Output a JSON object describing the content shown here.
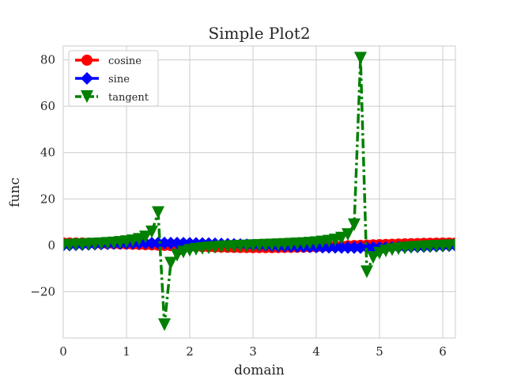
{
  "chart_data": {
    "type": "line",
    "title": "Simple Plot2",
    "xlabel": "domain",
    "ylabel": "func",
    "xlim": [
      0,
      6.2
    ],
    "ylim": [
      -40,
      86
    ],
    "xticks": [
      0,
      1,
      2,
      3,
      4,
      5,
      6
    ],
    "xtick_labels": [
      "0",
      "1",
      "2",
      "3",
      "4",
      "5",
      "6"
    ],
    "yticks": [
      -20,
      0,
      20,
      40,
      60,
      80
    ],
    "ytick_labels": [
      "−20",
      "0",
      "20",
      "40",
      "60",
      "80"
    ],
    "grid": true,
    "legend_position": "top-left",
    "x": [
      0.0,
      0.1,
      0.2,
      0.3,
      0.4,
      0.5,
      0.6,
      0.7,
      0.8,
      0.9,
      1.0,
      1.1,
      1.2,
      1.3,
      1.4,
      1.5,
      1.6,
      1.7,
      1.8,
      1.9,
      2.0,
      2.1,
      2.2,
      2.3,
      2.4,
      2.5,
      2.6,
      2.7,
      2.8,
      2.9,
      3.0,
      3.1,
      3.2,
      3.3,
      3.4,
      3.5,
      3.6,
      3.7,
      3.8,
      3.9,
      4.0,
      4.1,
      4.2,
      4.3,
      4.4,
      4.5,
      4.6,
      4.7,
      4.8,
      4.9,
      5.0,
      5.1,
      5.2,
      5.3,
      5.4,
      5.5,
      5.6,
      5.7,
      5.8,
      5.9,
      6.0,
      6.1,
      6.2
    ],
    "series": [
      {
        "name": "cosine",
        "color": "#ff0000",
        "marker": "circle",
        "linestyle": "solid",
        "values": [
          1.0,
          0.995,
          0.98,
          0.955,
          0.921,
          0.878,
          0.825,
          0.765,
          0.697,
          0.622,
          0.54,
          0.454,
          0.362,
          0.267,
          0.17,
          0.071,
          -0.029,
          -0.129,
          -0.227,
          -0.323,
          -0.416,
          -0.505,
          -0.589,
          -0.666,
          -0.737,
          -0.801,
          -0.857,
          -0.904,
          -0.942,
          -0.971,
          -0.99,
          -0.999,
          -0.998,
          -0.987,
          -0.967,
          -0.936,
          -0.897,
          -0.848,
          -0.791,
          -0.726,
          -0.654,
          -0.575,
          -0.49,
          -0.401,
          -0.307,
          -0.211,
          -0.112,
          -0.012,
          0.087,
          0.187,
          0.284,
          0.378,
          0.468,
          0.554,
          0.634,
          0.709,
          0.776,
          0.835,
          0.886,
          0.927,
          0.96,
          0.983,
          0.996
        ]
      },
      {
        "name": "sine",
        "color": "#0000ff",
        "marker": "diamond",
        "linestyle": "solid",
        "values": [
          0.0,
          0.1,
          0.199,
          0.296,
          0.389,
          0.479,
          0.565,
          0.644,
          0.717,
          0.783,
          0.841,
          0.891,
          0.932,
          0.964,
          0.985,
          0.997,
          1.0,
          0.992,
          0.974,
          0.946,
          0.909,
          0.863,
          0.808,
          0.746,
          0.675,
          0.598,
          0.516,
          0.427,
          0.335,
          0.239,
          0.141,
          0.042,
          -0.058,
          -0.158,
          -0.256,
          -0.351,
          -0.443,
          -0.53,
          -0.612,
          -0.688,
          -0.757,
          -0.818,
          -0.872,
          -0.916,
          -0.952,
          -0.978,
          -0.994,
          -1.0,
          -0.996,
          -0.982,
          -0.959,
          -0.926,
          -0.883,
          -0.832,
          -0.773,
          -0.706,
          -0.631,
          -0.551,
          -0.465,
          -0.374,
          -0.279,
          -0.182,
          -0.083
        ]
      },
      {
        "name": "tangent",
        "color": "#008000",
        "marker": "triangle-down",
        "linestyle": "dashdot",
        "values": [
          0.0,
          0.1,
          0.203,
          0.309,
          0.423,
          0.546,
          0.684,
          0.842,
          1.03,
          1.26,
          1.557,
          1.965,
          2.572,
          3.602,
          5.798,
          14.101,
          -34.233,
          -7.697,
          -4.286,
          -2.927,
          -2.185,
          -1.71,
          -1.374,
          -1.119,
          -0.916,
          -0.747,
          -0.602,
          -0.473,
          -0.356,
          -0.246,
          -0.143,
          -0.042,
          0.058,
          0.16,
          0.265,
          0.375,
          0.493,
          0.625,
          0.774,
          0.947,
          1.158,
          1.424,
          1.778,
          2.286,
          3.096,
          4.637,
          8.86,
          80.713,
          -11.385,
          -5.267,
          -3.381,
          -2.449,
          -1.886,
          -1.501,
          -1.218,
          -0.996,
          -0.814,
          -0.66,
          -0.525,
          -0.403,
          -0.291,
          -0.185,
          -0.083
        ]
      }
    ]
  }
}
